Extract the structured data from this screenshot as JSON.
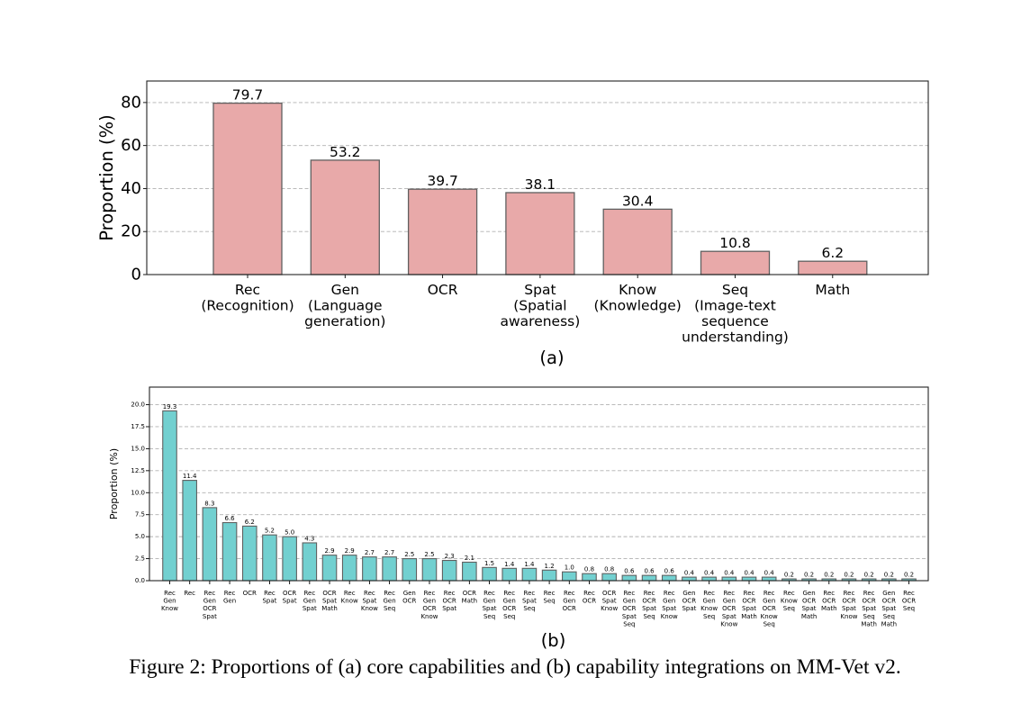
{
  "caption": "Figure 2: Proportions of (a) core capabilities and (b) capability integrations on MM-Vet v2.",
  "chart_data": [
    {
      "id": "a",
      "type": "bar",
      "panel_label": "(a)",
      "title": "",
      "xlabel": "",
      "ylabel": "Proportion (%)",
      "ylim": [
        0,
        90
      ],
      "yticks": [
        0,
        20,
        40,
        60,
        80
      ],
      "ytick_labels": [
        "0",
        "20",
        "40",
        "60",
        "80"
      ],
      "grid": "horizontal dashed",
      "bar_color": "#e8a9a9",
      "edge_color": "#606060",
      "categories": [
        [
          "Rec",
          "(Recognition)"
        ],
        [
          "Gen",
          "(Language",
          "generation)"
        ],
        [
          "OCR"
        ],
        [
          "Spat",
          "(Spatial",
          "awareness)"
        ],
        [
          "Know",
          "(Knowledge)"
        ],
        [
          "Seq",
          "(Image-text",
          "sequence",
          "understanding)"
        ],
        [
          "Math"
        ]
      ],
      "values": [
        79.7,
        53.2,
        39.7,
        38.1,
        30.4,
        10.8,
        6.2
      ],
      "value_labels": [
        "79.7",
        "53.2",
        "39.7",
        "38.1",
        "30.4",
        "10.8",
        "6.2"
      ]
    },
    {
      "id": "b",
      "type": "bar",
      "panel_label": "(b)",
      "title": "",
      "xlabel": "",
      "ylabel": "Proportion (%)",
      "ylim": [
        0,
        22
      ],
      "yticks": [
        0,
        2.5,
        5,
        7.5,
        10,
        12.5,
        15,
        17.5,
        20
      ],
      "ytick_labels": [
        "0.0",
        "2.5",
        "5.0",
        "7.5",
        "10.0",
        "12.5",
        "15.0",
        "17.5",
        "20.0"
      ],
      "grid": "horizontal dashed",
      "bar_color": "#72d0d0",
      "edge_color": "#606060",
      "categories": [
        [
          "Rec",
          "Gen",
          "Know"
        ],
        [
          "Rec"
        ],
        [
          "Rec",
          "Gen",
          "OCR",
          "Spat"
        ],
        [
          "Rec",
          "Gen"
        ],
        [
          "OCR"
        ],
        [
          "Rec",
          "Spat"
        ],
        [
          "OCR",
          "Spat"
        ],
        [
          "Rec",
          "Gen",
          "Spat"
        ],
        [
          "OCR",
          "Spat",
          "Math"
        ],
        [
          "Rec",
          "Know"
        ],
        [
          "Rec",
          "Spat",
          "Know"
        ],
        [
          "Rec",
          "Gen",
          "Seq"
        ],
        [
          "Gen",
          "OCR"
        ],
        [
          "Rec",
          "Gen",
          "OCR",
          "Know"
        ],
        [
          "Rec",
          "OCR",
          "Spat"
        ],
        [
          "OCR",
          "Math"
        ],
        [
          "Rec",
          "Gen",
          "Spat",
          "Seq"
        ],
        [
          "Rec",
          "Gen",
          "OCR",
          "Seq"
        ],
        [
          "Rec",
          "Spat",
          "Seq"
        ],
        [
          "Rec",
          "Seq"
        ],
        [
          "Rec",
          "Gen",
          "OCR"
        ],
        [
          "Rec",
          "OCR"
        ],
        [
          "OCR",
          "Spat",
          "Know"
        ],
        [
          "Rec",
          "Gen",
          "OCR",
          "Spat",
          "Seq"
        ],
        [
          "Rec",
          "OCR",
          "Spat",
          "Seq"
        ],
        [
          "Rec",
          "Gen",
          "Spat",
          "Know"
        ],
        [
          "Gen",
          "OCR",
          "Spat"
        ],
        [
          "Rec",
          "Gen",
          "Know",
          "Seq"
        ],
        [
          "Rec",
          "Gen",
          "OCR",
          "Spat",
          "Know"
        ],
        [
          "Rec",
          "OCR",
          "Spat",
          "Math"
        ],
        [
          "Rec",
          "Gen",
          "OCR",
          "Know",
          "Seq"
        ],
        [
          "Rec",
          "Know",
          "Seq"
        ],
        [
          "Gen",
          "OCR",
          "Spat",
          "Math"
        ],
        [
          "Rec",
          "OCR",
          "Math"
        ],
        [
          "Rec",
          "OCR",
          "Spat",
          "Know"
        ],
        [
          "Rec",
          "OCR",
          "Spat",
          "Seq",
          "Math"
        ],
        [
          "Gen",
          "OCR",
          "Spat",
          "Seq",
          "Math"
        ],
        [
          "Rec",
          "OCR",
          "Seq"
        ]
      ],
      "values": [
        19.3,
        11.4,
        8.3,
        6.6,
        6.2,
        5.2,
        5.0,
        4.3,
        2.9,
        2.9,
        2.7,
        2.7,
        2.5,
        2.5,
        2.3,
        2.1,
        1.5,
        1.4,
        1.4,
        1.2,
        1.0,
        0.8,
        0.8,
        0.6,
        0.6,
        0.6,
        0.4,
        0.4,
        0.4,
        0.4,
        0.4,
        0.2,
        0.2,
        0.2,
        0.2,
        0.2,
        0.2,
        0.2
      ],
      "value_labels": [
        "19.3",
        "11.4",
        "8.3",
        "6.6",
        "6.2",
        "5.2",
        "5.0",
        "4.3",
        "2.9",
        "2.9",
        "2.7",
        "2.7",
        "2.5",
        "2.5",
        "2.3",
        "2.1",
        "1.5",
        "1.4",
        "1.4",
        "1.2",
        "1.0",
        "0.8",
        "0.8",
        "0.6",
        "0.6",
        "0.6",
        "0.4",
        "0.4",
        "0.4",
        "0.4",
        "0.4",
        "0.2",
        "0.2",
        "0.2",
        "0.2",
        "0.2",
        "0.2",
        "0.2"
      ]
    }
  ]
}
